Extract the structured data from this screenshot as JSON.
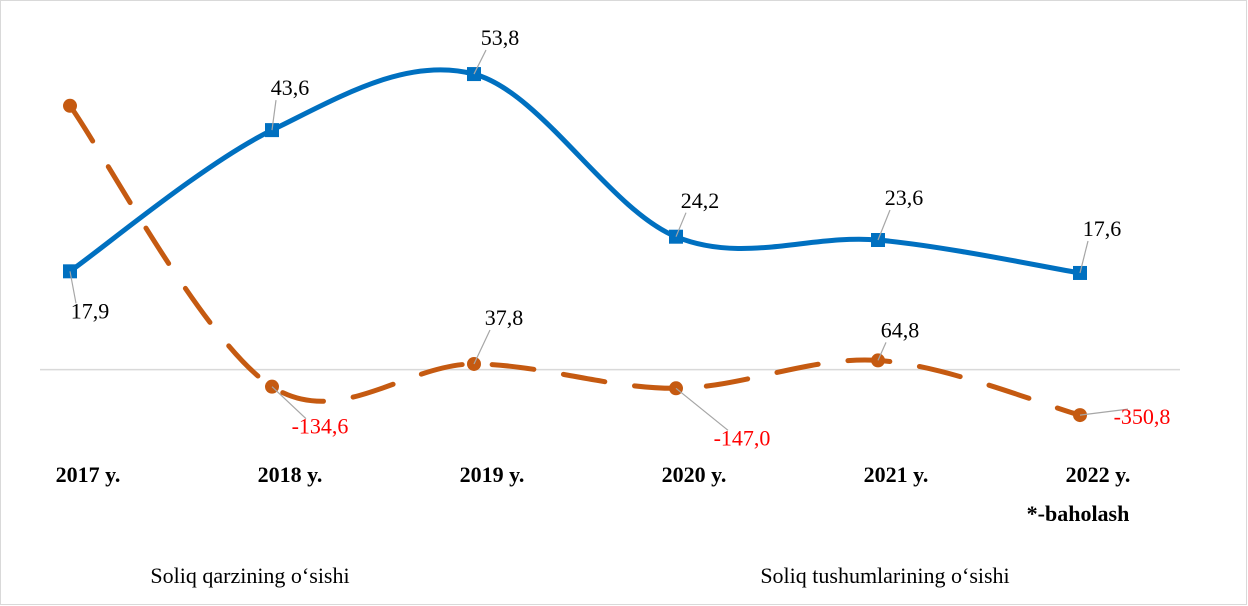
{
  "chart_data": {
    "type": "line",
    "categories": [
      "2017 y.",
      "2018 y.",
      "2019 y.",
      "2020 y.",
      "2021 y.",
      "2022 y."
    ],
    "annotations": [
      "*-baholash"
    ],
    "series": [
      {
        "name": "Soliq qarzining o‘sishi",
        "color": "#c55a11",
        "axis": "y2",
        "values": [
          2000,
          -134.6,
          37.8,
          -147.0,
          64.8,
          -350.8
        ],
        "value_labels": [
          null,
          "-134,6",
          "37,8",
          "-147,0",
          "64,8",
          "-350,8"
        ]
      },
      {
        "name": "Soliq tushumlarining o‘sishi",
        "color": "#0070c0",
        "values": [
          17.9,
          43.6,
          53.8,
          24.2,
          23.6,
          17.6
        ],
        "value_labels": [
          "17,9",
          "43,6",
          "53,8",
          "24,2",
          "23,6",
          "17,6"
        ]
      }
    ],
    "ylim": [
      -31,
      60
    ],
    "y2lim": [
      -1300,
      2500
    ],
    "grid": false
  }
}
